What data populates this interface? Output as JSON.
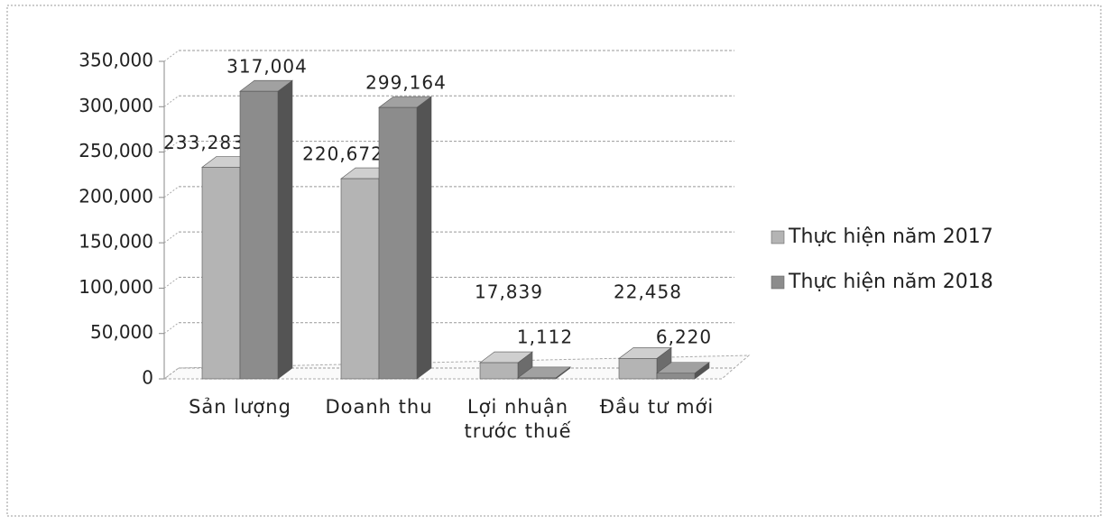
{
  "chart_data": {
    "type": "bar3d",
    "categories": [
      "Sản lượng",
      "Doanh thu",
      "Lợi nhuận trước thuế",
      "Đầu tư mới"
    ],
    "series": [
      {
        "name": "Thực hiện năm 2017",
        "color": "#b4b4b4",
        "values": [
          233283,
          220672,
          17839,
          22458
        ],
        "value_labels": [
          "233,283",
          "220,672",
          "17,839",
          "22,458"
        ]
      },
      {
        "name": "Thực hiện năm 2018",
        "color": "#8c8c8c",
        "values": [
          317004,
          299164,
          1112,
          6220
        ],
        "value_labels": [
          "317,004",
          "299,164",
          "1,112",
          "6,220"
        ]
      }
    ],
    "ylim": [
      0,
      350000
    ],
    "yticks": [
      0,
      {
        "value": 50000,
        "label": "50,000"
      },
      {
        "value": 100000,
        "label": "100,000"
      },
      {
        "value": 150000,
        "label": "150,000"
      },
      {
        "value": 200000,
        "label": "200,000"
      },
      {
        "value": 250000,
        "label": "250,000"
      },
      {
        "value": 300000,
        "label": "300,000"
      },
      {
        "value": 350000,
        "label": "350,000"
      }
    ],
    "grid": true,
    "legend": "right"
  }
}
